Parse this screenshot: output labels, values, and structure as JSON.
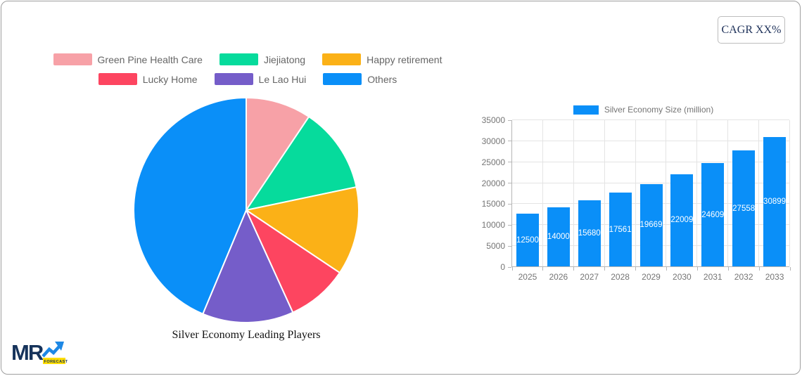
{
  "header": {
    "cagr_label": "CAGR XX%"
  },
  "logo": {
    "text": "MR",
    "badge": "FORECAST"
  },
  "colors": {
    "accent_blue": "#0a8ff8",
    "card_border": "#9e9e9e",
    "grid": "#e4e4e4",
    "axis": "#b6b6b6",
    "legend_text": "#666666",
    "tick_text": "#757575"
  },
  "chart_data": [
    {
      "type": "pie",
      "title": "Silver Economy Leading Players",
      "labels": [
        "Green Pine Health Care",
        "Jiejiatong",
        "Happy retirement",
        "Lucky Home",
        "Le Lao Hui",
        "Others"
      ],
      "values_percent": [
        9.4,
        12.3,
        12.7,
        8.8,
        13.1,
        43.7
      ],
      "colors": [
        "#f7a1a7",
        "#06db9c",
        "#fbb117",
        "#fd4560",
        "#755dc9",
        "#0a8ff8"
      ],
      "legend_rows": [
        [
          0,
          1,
          2
        ],
        [
          3,
          4,
          5
        ]
      ],
      "legend_position": "top",
      "slice_border_color": "#ffffff",
      "start_angle_deg": 0,
      "direction": "clockwise"
    },
    {
      "type": "bar",
      "legend": "Silver Economy Size (million)",
      "categories": [
        "2025",
        "2026",
        "2027",
        "2028",
        "2029",
        "2030",
        "2031",
        "2032",
        "2033"
      ],
      "values": [
        12500,
        14000,
        15680,
        17561,
        19669,
        22009,
        24609,
        27558,
        30899
      ],
      "bar_color": "#0a8ff8",
      "value_label_color": "#ffffff",
      "ylim": [
        0,
        35000
      ],
      "yticks": [
        0,
        5000,
        10000,
        15000,
        20000,
        25000,
        30000,
        35000
      ],
      "grid": "on",
      "legend_position": "top"
    }
  ]
}
